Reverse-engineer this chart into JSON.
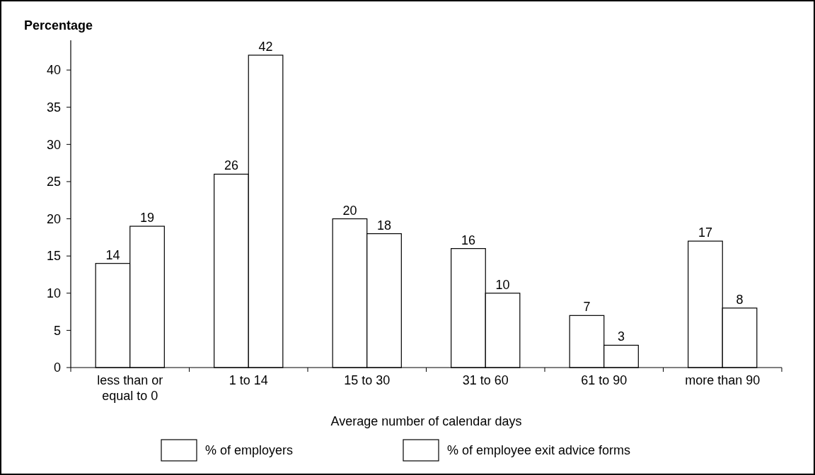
{
  "chart_data": {
    "type": "bar",
    "ylabel": "Percentage",
    "xlabel": "Average number of calendar days",
    "categories": [
      "less than or equal to 0",
      "1 to 14",
      "15 to 30",
      "31 to 60",
      "61 to 90",
      "more than 90"
    ],
    "series": [
      {
        "name": "% of employers",
        "color": "#ffffff",
        "values": [
          14,
          26,
          20,
          16,
          7,
          17
        ]
      },
      {
        "name": "% of employee exit advice forms",
        "color": "#ffffff",
        "values": [
          19,
          42,
          18,
          10,
          3,
          8
        ]
      }
    ],
    "ylim": [
      0,
      44
    ],
    "yticks": [
      0,
      5,
      10,
      15,
      20,
      25,
      30,
      35,
      40
    ],
    "data_labels": true,
    "legend": "bottom",
    "grid": false
  }
}
